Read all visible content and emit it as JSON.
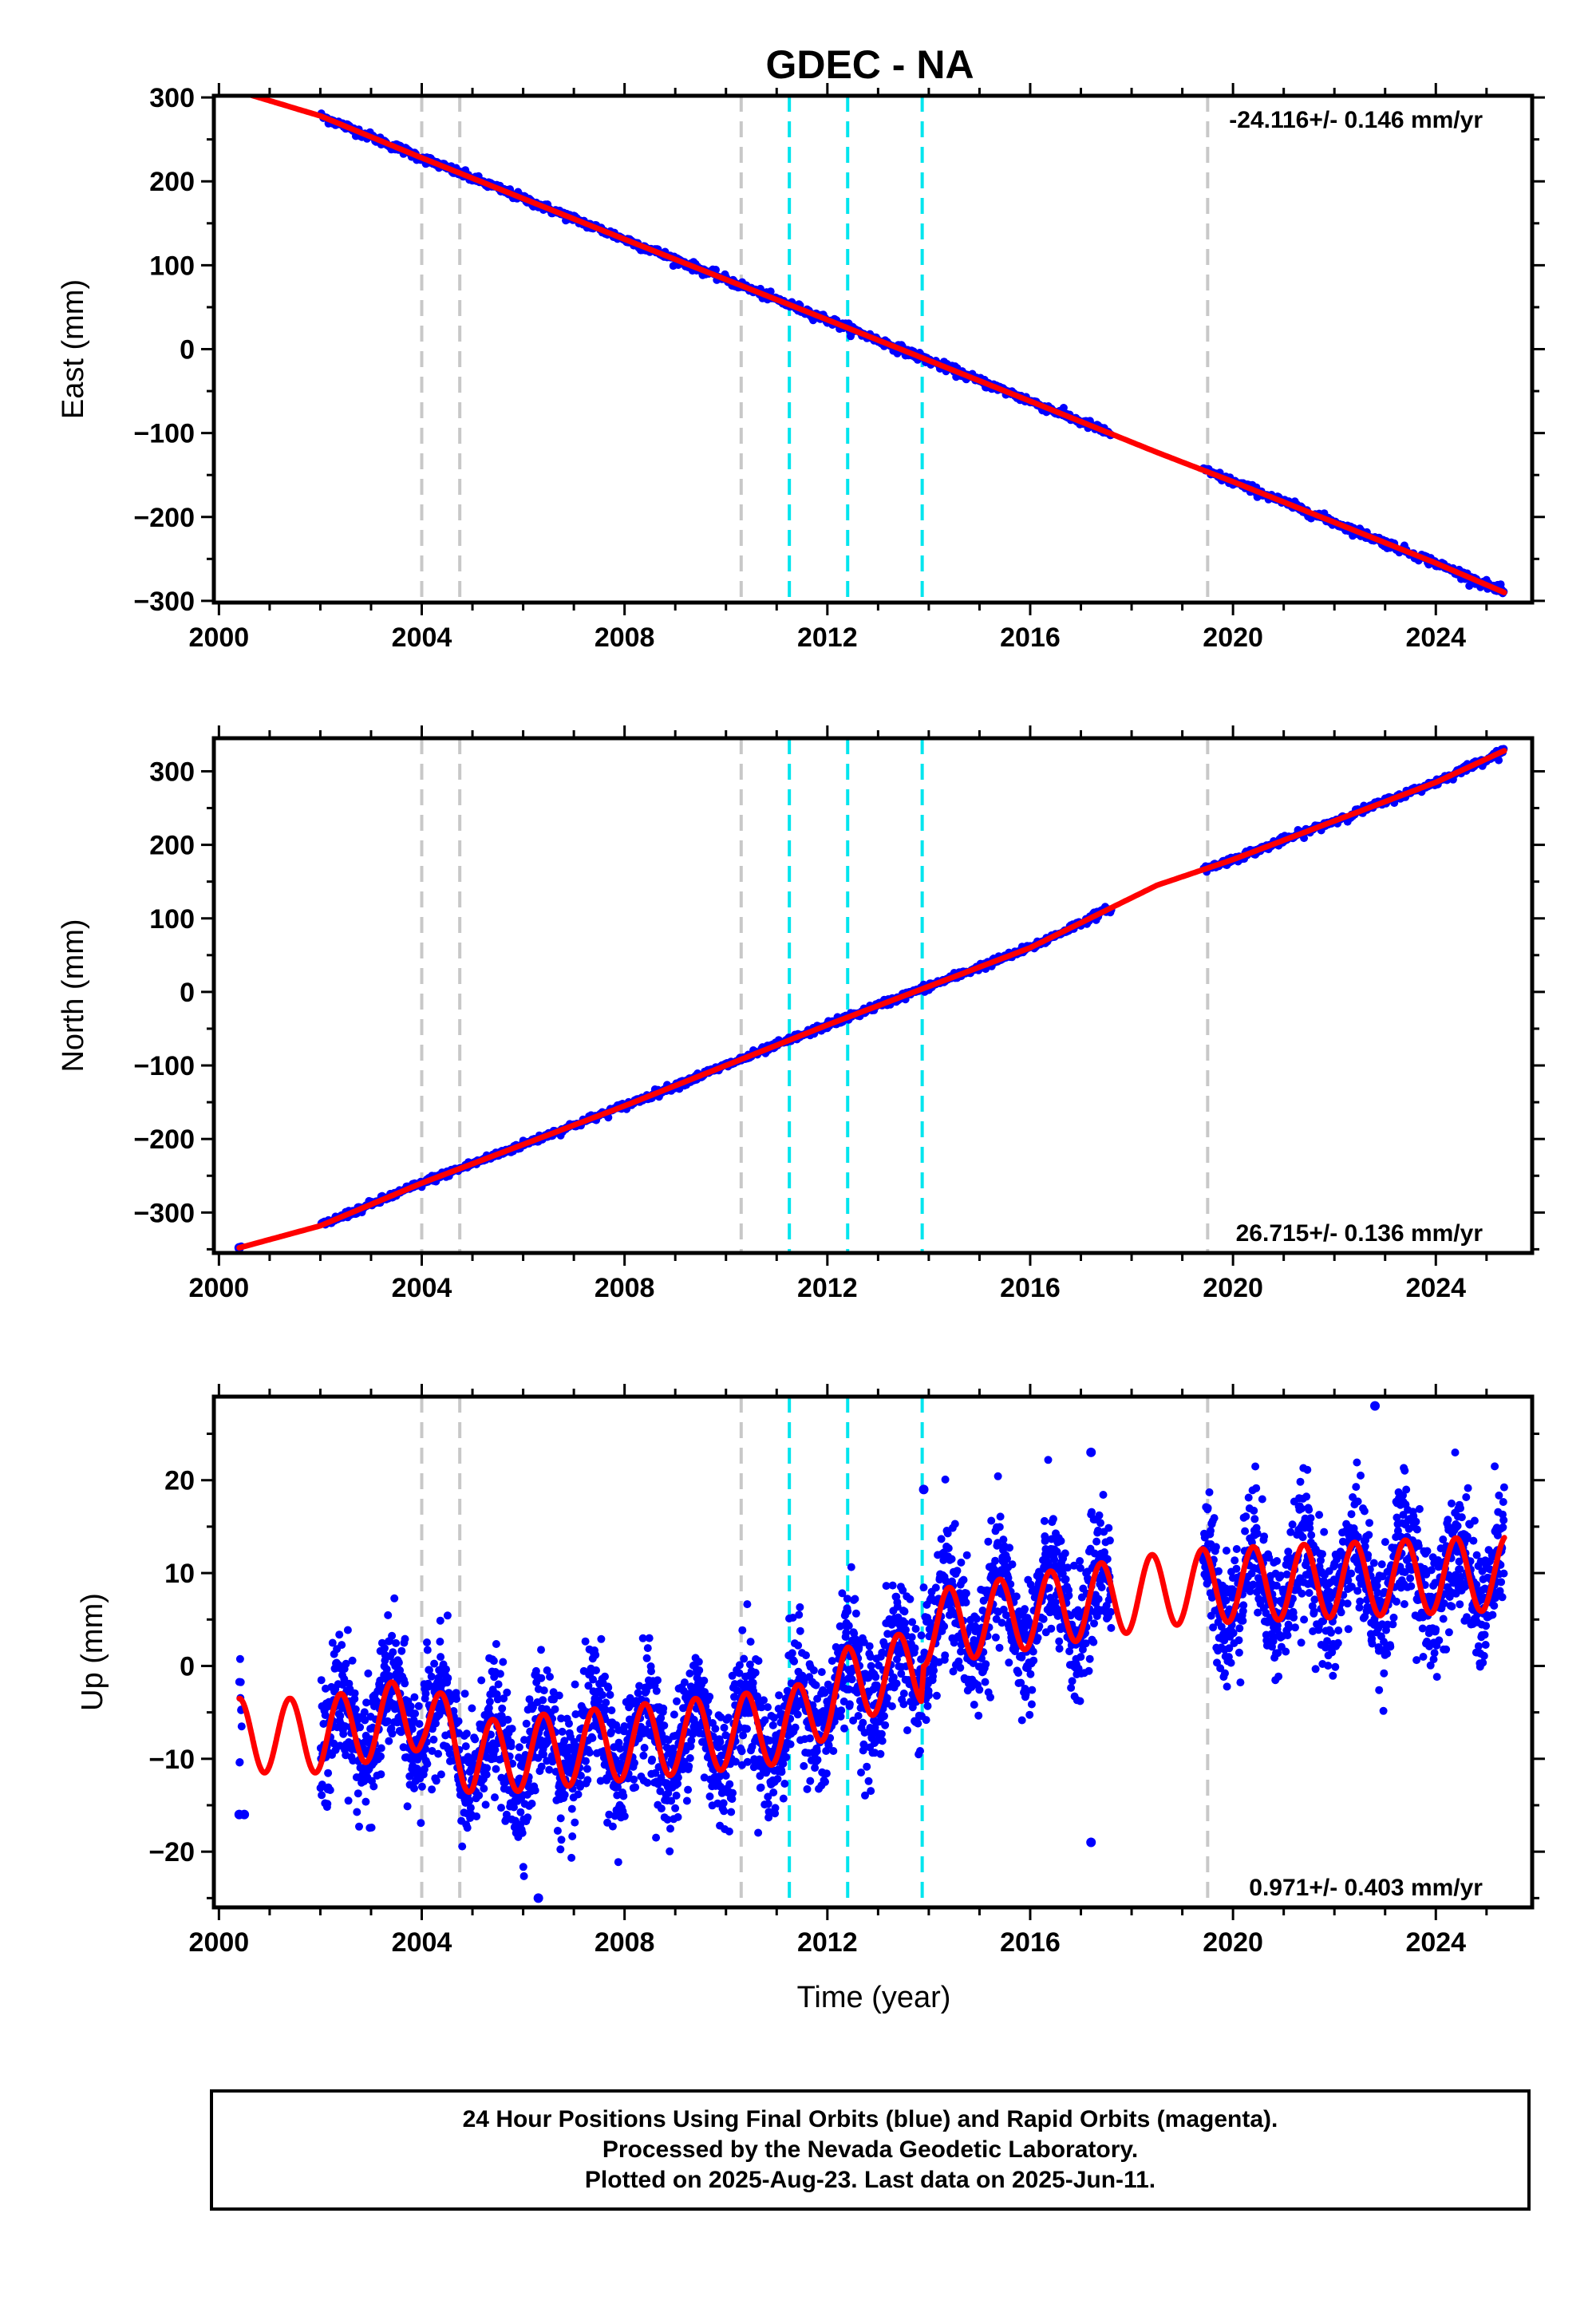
{
  "title": "GDEC - NA",
  "xlabel": "Time (year)",
  "x_ticks": [
    2000,
    2004,
    2008,
    2012,
    2016,
    2020,
    2024
  ],
  "xlim": [
    1999.9,
    2025.9
  ],
  "colors": {
    "data_points": "#0000ff",
    "model_line": "#ff0000",
    "equipment_change_line": "#c8c8c8",
    "earthquake_line": "#00e5ee",
    "frame": "#000000"
  },
  "caption": {
    "line1": "24 Hour Positions Using Final Orbits (blue) and Rapid Orbits (magenta).",
    "line2": "Processed by the Nevada Geodetic Laboratory.",
    "line3": "Plotted on 2025-Aug-23. Last data on 2025-Jun-11."
  },
  "chart_data": [
    {
      "type": "scatter",
      "panel": "east",
      "ylabel": "East (mm)",
      "ylim": [
        -302,
        302
      ],
      "y_ticks": [
        300,
        200,
        100,
        0,
        -100,
        -200,
        -300
      ],
      "rate": "-24.116+/- 0.146 mm/yr",
      "rate_position": "top-right",
      "grid": false,
      "data_start": 2000.4,
      "data_end": 2025.35,
      "gaps": [
        [
          2000.45,
          2002.0
        ],
        [
          2017.6,
          2019.4
        ]
      ],
      "model_points": [
        [
          2000.4,
          307
        ],
        [
          2002.0,
          278
        ],
        [
          2004.0,
          228
        ],
        [
          2008.0,
          131
        ],
        [
          2012.0,
          35
        ],
        [
          2016.0,
          -62
        ],
        [
          2018.5,
          -123
        ],
        [
          2020.0,
          -158
        ],
        [
          2024.0,
          -255
        ],
        [
          2025.35,
          -290
        ]
      ],
      "vlines_gray": [
        2004.0,
        2004.75,
        2010.3
      ],
      "vlines_cyan": [
        2011.25,
        2012.4,
        2013.87
      ],
      "vlines_gray_late": [
        2019.5
      ]
    },
    {
      "type": "scatter",
      "panel": "north",
      "ylabel": "North (mm)",
      "ylim": [
        -355,
        345
      ],
      "y_ticks": [
        300,
        200,
        100,
        0,
        -100,
        -200,
        -300
      ],
      "rate": "26.715+/- 0.136 mm/yr",
      "rate_position": "bottom-right",
      "grid": false,
      "data_start": 2000.4,
      "data_end": 2025.35,
      "gaps": [
        [
          2000.45,
          2002.0
        ],
        [
          2017.6,
          2019.4
        ]
      ],
      "model_points": [
        [
          2000.4,
          -348
        ],
        [
          2002.0,
          -318
        ],
        [
          2004.0,
          -260
        ],
        [
          2008.0,
          -155
        ],
        [
          2012.0,
          -45
        ],
        [
          2016.0,
          60
        ],
        [
          2018.5,
          145
        ],
        [
          2020.0,
          180
        ],
        [
          2024.0,
          285
        ],
        [
          2025.35,
          328
        ]
      ],
      "vlines_gray": [
        2004.0,
        2004.75,
        2010.3
      ],
      "vlines_cyan": [
        2011.25,
        2012.4,
        2013.87
      ],
      "vlines_gray_late": [
        2019.5
      ]
    },
    {
      "type": "scatter",
      "panel": "up",
      "ylabel": "Up (mm)",
      "ylim": [
        -26,
        29
      ],
      "y_ticks": [
        20,
        10,
        0,
        -10,
        -20
      ],
      "rate": "0.971+/- 0.403 mm/yr",
      "rate_position": "bottom-right",
      "grid": false,
      "data_start": 2000.4,
      "data_end": 2025.35,
      "gaps": [
        [
          2000.45,
          2002.0
        ],
        [
          2017.6,
          2019.4
        ]
      ],
      "model_trend": [
        [
          2000.4,
          -7.5
        ],
        [
          2002.0,
          -7.5
        ],
        [
          2004.0,
          -5.0
        ],
        [
          2005.0,
          -10.0
        ],
        [
          2011.2,
          -6.5
        ],
        [
          2011.3,
          -6.5
        ],
        [
          2012.4,
          -2.0
        ],
        [
          2013.85,
          0.0
        ],
        [
          2013.9,
          4.0
        ],
        [
          2019.0,
          8.5
        ],
        [
          2025.35,
          10.0
        ]
      ],
      "seasonal_amplitude": 4.0,
      "outliers": [
        [
          2000.5,
          -16
        ],
        [
          2006.3,
          -25
        ],
        [
          2013.9,
          19
        ],
        [
          2017.2,
          23
        ],
        [
          2017.2,
          -19
        ],
        [
          2022.8,
          28
        ]
      ],
      "vlines_gray": [
        2004.0,
        2004.75,
        2010.3
      ],
      "vlines_cyan": [
        2011.25,
        2012.4,
        2013.87
      ],
      "vlines_gray_late": [
        2019.5
      ]
    }
  ]
}
